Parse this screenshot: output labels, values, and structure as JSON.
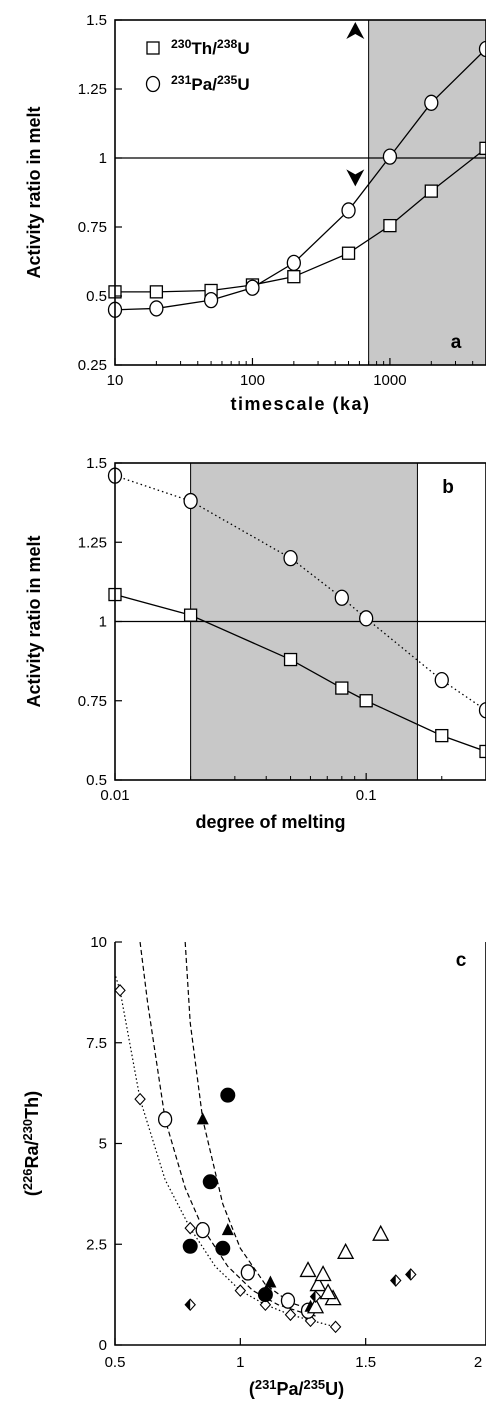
{
  "chart_data": [
    {
      "type": "line",
      "panel": "a",
      "xscale": "log",
      "xlim": [
        10,
        5000
      ],
      "ylim": [
        0.25,
        1.5
      ],
      "xticks": [
        10,
        100,
        1000
      ],
      "xticklabels": [
        "10",
        "100",
        "1000"
      ],
      "yticks": [
        0.25,
        0.5,
        0.75,
        1,
        1.25,
        1.5
      ],
      "yticklabels": [
        "0.25",
        "0.5",
        "0.75",
        "1",
        "1.25",
        "1.5"
      ],
      "xlabel": "timescale (ka)",
      "ylabel": "Activity ratio in melt",
      "hline": 1,
      "shade_x": [
        700,
        5000
      ],
      "arrows": [
        {
          "x": 560,
          "y": 1.46,
          "dir": "up"
        },
        {
          "x": 560,
          "y": 0.93,
          "dir": "down"
        }
      ],
      "legend": [
        {
          "marker": "square",
          "sup1": "230",
          "el1": "Th/",
          "sup2": "238",
          "el2": "U"
        },
        {
          "marker": "circle",
          "sup1": "231",
          "el1": "Pa/",
          "sup2": "235",
          "el2": "U"
        }
      ],
      "legend_position": "top-left",
      "series": [
        {
          "marker": "square",
          "style": "solid",
          "x": [
            10,
            20,
            50,
            100,
            200,
            500,
            1000,
            2000,
            5000
          ],
          "y": [
            0.515,
            0.515,
            0.52,
            0.54,
            0.57,
            0.655,
            0.755,
            0.88,
            1.035
          ]
        },
        {
          "marker": "circle",
          "style": "solid",
          "x": [
            10,
            20,
            50,
            100,
            200,
            500,
            1000,
            2000,
            5000
          ],
          "y": [
            0.45,
            0.455,
            0.485,
            0.53,
            0.62,
            0.81,
            1.005,
            1.2,
            1.395
          ]
        }
      ]
    },
    {
      "type": "line",
      "panel": "b",
      "xscale": "log",
      "xlim": [
        0.01,
        0.3
      ],
      "ylim": [
        0.5,
        1.5
      ],
      "xticks": [
        0.01,
        0.1
      ],
      "xticklabels": [
        "0.01",
        "0.1"
      ],
      "yticks": [
        0.5,
        0.75,
        1,
        1.25,
        1.5
      ],
      "yticklabels": [
        "0.5",
        "0.75",
        "1",
        "1.25",
        "1.5"
      ],
      "xlabel": "degree of melting",
      "ylabel": "Activity ratio in melt",
      "hline": 1,
      "shade_x": [
        0.02,
        0.16
      ],
      "series": [
        {
          "marker": "square",
          "style": "solid",
          "x": [
            0.01,
            0.02,
            0.05,
            0.08,
            0.1,
            0.2,
            0.3
          ],
          "y": [
            1.085,
            1.02,
            0.88,
            0.79,
            0.75,
            0.64,
            0.59
          ]
        },
        {
          "marker": "circle",
          "style": "dotted",
          "x": [
            0.01,
            0.02,
            0.05,
            0.08,
            0.1,
            0.2,
            0.3
          ],
          "y": [
            1.46,
            1.38,
            1.2,
            1.075,
            1.01,
            0.815,
            0.72
          ]
        }
      ]
    },
    {
      "type": "scatter",
      "panel": "c",
      "xlim": [
        0.5,
        2
      ],
      "ylim": [
        0,
        10
      ],
      "xticks": [
        0.5,
        1,
        1.5,
        2
      ],
      "xticklabels": [
        "0.5",
        "1",
        "1.5",
        "2"
      ],
      "yticks": [
        0,
        2.5,
        5,
        7.5,
        10
      ],
      "yticklabels": [
        "0",
        "2.5",
        "5",
        "7.5",
        "10"
      ],
      "xlabel": {
        "open": "(",
        "sup1": "231",
        "el1": "Pa/",
        "sup2": "235",
        "el2": "U",
        "close": ")"
      },
      "ylabel": {
        "open": "(",
        "sup1": "226",
        "el1": "Ra/",
        "sup2": "230",
        "el2": "Th",
        "close": ")"
      },
      "curves": [
        {
          "style": "dotted",
          "x": [
            0.46,
            0.52,
            0.6,
            0.7,
            0.8,
            0.9,
            1.0,
            1.1,
            1.2,
            1.3,
            1.38
          ],
          "y": [
            10,
            8.8,
            6.1,
            4.1,
            2.9,
            1.95,
            1.35,
            1.0,
            0.75,
            0.58,
            0.45
          ]
        },
        {
          "style": "dashed",
          "x": [
            0.6,
            0.63,
            0.7,
            0.78,
            0.85,
            0.95,
            1.05,
            1.15,
            1.25,
            1.3
          ],
          "y": [
            10,
            8.5,
            5.6,
            3.9,
            2.9,
            1.95,
            1.35,
            1.0,
            0.8,
            0.72
          ]
        },
        {
          "style": "dashed",
          "x": [
            0.78,
            0.8,
            0.85,
            0.93,
            1.0,
            1.1,
            1.2,
            1.3
          ],
          "y": [
            10,
            8.0,
            5.6,
            3.5,
            2.4,
            1.5,
            1.05,
            0.85
          ]
        }
      ],
      "points": [
        {
          "marker": "diamond-open",
          "x": [
            0.52,
            0.6,
            0.8,
            1.0,
            1.1,
            1.2,
            1.28,
            1.38
          ],
          "y": [
            8.8,
            6.1,
            2.9,
            1.35,
            1.0,
            0.75,
            0.6,
            0.45
          ]
        },
        {
          "marker": "circle-open",
          "x": [
            0.7,
            0.85,
            1.03,
            1.19,
            1.27
          ],
          "y": [
            5.6,
            2.85,
            1.8,
            1.1,
            0.85
          ]
        },
        {
          "marker": "triangle-filled",
          "x": [
            0.85,
            0.95,
            1.12,
            1.28
          ],
          "y": [
            5.6,
            2.85,
            1.55,
            0.95
          ]
        },
        {
          "marker": "circle-filled",
          "x": [
            0.8,
            0.88,
            0.93,
            0.95,
            1.1
          ],
          "y": [
            2.45,
            4.05,
            2.4,
            6.2,
            1.25
          ]
        },
        {
          "marker": "triangle-open",
          "x": [
            1.27,
            1.31,
            1.33,
            1.37,
            1.42,
            1.56,
            1.3,
            1.35
          ],
          "y": [
            1.85,
            1.5,
            1.75,
            1.15,
            2.3,
            2.75,
            0.95,
            1.3
          ]
        },
        {
          "marker": "diamond-half",
          "x": [
            0.8,
            1.3,
            1.62,
            1.68
          ],
          "y": [
            1.0,
            1.2,
            1.6,
            1.75
          ]
        }
      ]
    }
  ]
}
